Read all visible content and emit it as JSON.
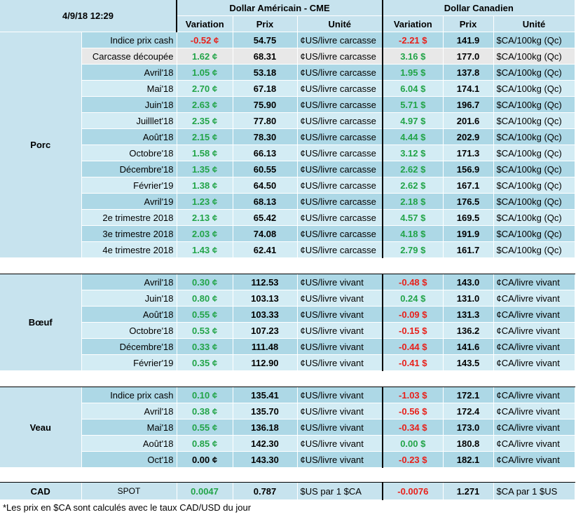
{
  "header": {
    "datetime": "4/9/18 12:29",
    "usd_title": "Dollar Américain - CME",
    "cad_title": "Dollar Canadien",
    "col_variation": "Variation",
    "col_prix": "Prix",
    "col_unite": "Unité"
  },
  "porc": {
    "category": "Porc",
    "rows": [
      {
        "label": "Indice prix cash",
        "usd_var": "-0.52 ¢",
        "usd_dir": "dn",
        "usd_prix": "54.75",
        "usd_unit": "¢US/livre carcasse",
        "cad_var": "-2.21 $",
        "cad_dir": "dn",
        "cad_prix": "141.9",
        "cad_unit": "$CA/100kg (Qc)"
      },
      {
        "label": "Carcasse découpée",
        "usd_var": "1.62 ¢",
        "usd_dir": "up",
        "usd_prix": "68.31",
        "usd_unit": "¢US/livre carcasse",
        "cad_var": "3.16 $",
        "cad_dir": "up",
        "cad_prix": "177.0",
        "cad_unit": "$CA/100kg (Qc)"
      },
      {
        "label": "Avril'18",
        "usd_var": "1.05 ¢",
        "usd_dir": "up",
        "usd_prix": "53.18",
        "usd_unit": "¢US/livre carcasse",
        "cad_var": "1.95 $",
        "cad_dir": "up",
        "cad_prix": "137.8",
        "cad_unit": "$CA/100kg (Qc)"
      },
      {
        "label": "Mai'18",
        "usd_var": "2.70 ¢",
        "usd_dir": "up",
        "usd_prix": "67.18",
        "usd_unit": "¢US/livre carcasse",
        "cad_var": "6.04 $",
        "cad_dir": "up",
        "cad_prix": "174.1",
        "cad_unit": "$CA/100kg (Qc)"
      },
      {
        "label": "Juin'18",
        "usd_var": "2.63 ¢",
        "usd_dir": "up",
        "usd_prix": "75.90",
        "usd_unit": "¢US/livre carcasse",
        "cad_var": "5.71 $",
        "cad_dir": "up",
        "cad_prix": "196.7",
        "cad_unit": "$CA/100kg (Qc)"
      },
      {
        "label": "Juilllet'18",
        "usd_var": "2.35 ¢",
        "usd_dir": "up",
        "usd_prix": "77.80",
        "usd_unit": "¢US/livre carcasse",
        "cad_var": "4.97 $",
        "cad_dir": "up",
        "cad_prix": "201.6",
        "cad_unit": "$CA/100kg (Qc)"
      },
      {
        "label": "Août'18",
        "usd_var": "2.15 ¢",
        "usd_dir": "up",
        "usd_prix": "78.30",
        "usd_unit": "¢US/livre carcasse",
        "cad_var": "4.44 $",
        "cad_dir": "up",
        "cad_prix": "202.9",
        "cad_unit": "$CA/100kg (Qc)"
      },
      {
        "label": "Octobre'18",
        "usd_var": "1.58 ¢",
        "usd_dir": "up",
        "usd_prix": "66.13",
        "usd_unit": "¢US/livre carcasse",
        "cad_var": "3.12 $",
        "cad_dir": "up",
        "cad_prix": "171.3",
        "cad_unit": "$CA/100kg (Qc)"
      },
      {
        "label": "Décembre'18",
        "usd_var": "1.35 ¢",
        "usd_dir": "up",
        "usd_prix": "60.55",
        "usd_unit": "¢US/livre carcasse",
        "cad_var": "2.62 $",
        "cad_dir": "up",
        "cad_prix": "156.9",
        "cad_unit": "$CA/100kg (Qc)"
      },
      {
        "label": "Février'19",
        "usd_var": "1.38 ¢",
        "usd_dir": "up",
        "usd_prix": "64.50",
        "usd_unit": "¢US/livre carcasse",
        "cad_var": "2.62 $",
        "cad_dir": "up",
        "cad_prix": "167.1",
        "cad_unit": "$CA/100kg (Qc)"
      },
      {
        "label": "Avril'19",
        "usd_var": "1.23 ¢",
        "usd_dir": "up",
        "usd_prix": "68.13",
        "usd_unit": "¢US/livre carcasse",
        "cad_var": "2.18 $",
        "cad_dir": "up",
        "cad_prix": "176.5",
        "cad_unit": "$CA/100kg (Qc)"
      },
      {
        "label": "2e trimestre 2018",
        "usd_var": "2.13 ¢",
        "usd_dir": "up",
        "usd_prix": "65.42",
        "usd_unit": "¢US/livre carcasse",
        "cad_var": "4.57 $",
        "cad_dir": "up",
        "cad_prix": "169.5",
        "cad_unit": "$CA/100kg (Qc)"
      },
      {
        "label": "3e trimestre 2018",
        "usd_var": "2.03 ¢",
        "usd_dir": "up",
        "usd_prix": "74.08",
        "usd_unit": "¢US/livre carcasse",
        "cad_var": "4.18 $",
        "cad_dir": "up",
        "cad_prix": "191.9",
        "cad_unit": "$CA/100kg (Qc)"
      },
      {
        "label": "4e trimestre 2018",
        "usd_var": "1.43 ¢",
        "usd_dir": "up",
        "usd_prix": "62.41",
        "usd_unit": "¢US/livre carcasse",
        "cad_var": "2.79 $",
        "cad_dir": "up",
        "cad_prix": "161.7",
        "cad_unit": "$CA/100kg (Qc)"
      }
    ]
  },
  "boeuf": {
    "category": "Bœuf",
    "rows": [
      {
        "label": "Avril'18",
        "usd_var": "0.30 ¢",
        "usd_dir": "up",
        "usd_prix": "112.53",
        "usd_unit": "¢US/livre vivant",
        "cad_var": "-0.48 $",
        "cad_dir": "dn",
        "cad_prix": "143.0",
        "cad_unit": "¢CA/livre vivant"
      },
      {
        "label": "Juin'18",
        "usd_var": "0.80 ¢",
        "usd_dir": "up",
        "usd_prix": "103.13",
        "usd_unit": "¢US/livre vivant",
        "cad_var": "0.24 $",
        "cad_dir": "up",
        "cad_prix": "131.0",
        "cad_unit": "¢CA/livre vivant"
      },
      {
        "label": "Août'18",
        "usd_var": "0.55 ¢",
        "usd_dir": "up",
        "usd_prix": "103.33",
        "usd_unit": "¢US/livre vivant",
        "cad_var": "-0.09 $",
        "cad_dir": "dn",
        "cad_prix": "131.3",
        "cad_unit": "¢CA/livre vivant"
      },
      {
        "label": "Octobre'18",
        "usd_var": "0.53 ¢",
        "usd_dir": "up",
        "usd_prix": "107.23",
        "usd_unit": "¢US/livre vivant",
        "cad_var": "-0.15 $",
        "cad_dir": "dn",
        "cad_prix": "136.2",
        "cad_unit": "¢CA/livre vivant"
      },
      {
        "label": "Décembre'18",
        "usd_var": "0.33 ¢",
        "usd_dir": "up",
        "usd_prix": "111.48",
        "usd_unit": "¢US/livre vivant",
        "cad_var": "-0.44 $",
        "cad_dir": "dn",
        "cad_prix": "141.6",
        "cad_unit": "¢CA/livre vivant"
      },
      {
        "label": "Février'19",
        "usd_var": "0.35 ¢",
        "usd_dir": "up",
        "usd_prix": "112.90",
        "usd_unit": "¢US/livre vivant",
        "cad_var": "-0.41 $",
        "cad_dir": "dn",
        "cad_prix": "143.5",
        "cad_unit": "¢CA/livre vivant"
      }
    ]
  },
  "veau": {
    "category": "Veau",
    "rows": [
      {
        "label": "Indice prix cash",
        "usd_var": "0.10 ¢",
        "usd_dir": "up",
        "usd_prix": "135.41",
        "usd_unit": "¢US/livre vivant",
        "cad_var": "-1.03 $",
        "cad_dir": "dn",
        "cad_prix": "172.1",
        "cad_unit": "¢CA/livre vivant"
      },
      {
        "label": "Avril'18",
        "usd_var": "0.38 ¢",
        "usd_dir": "up",
        "usd_prix": "135.70",
        "usd_unit": "¢US/livre vivant",
        "cad_var": "-0.56 $",
        "cad_dir": "dn",
        "cad_prix": "172.4",
        "cad_unit": "¢CA/livre vivant"
      },
      {
        "label": "Mai'18",
        "usd_var": "0.55 ¢",
        "usd_dir": "up",
        "usd_prix": "136.18",
        "usd_unit": "¢US/livre vivant",
        "cad_var": "-0.34 $",
        "cad_dir": "dn",
        "cad_prix": "173.0",
        "cad_unit": "¢CA/livre vivant"
      },
      {
        "label": "Août'18",
        "usd_var": "0.85 ¢",
        "usd_dir": "up",
        "usd_prix": "142.30",
        "usd_unit": "¢US/livre vivant",
        "cad_var": "0.00 $",
        "cad_dir": "up",
        "cad_prix": "180.8",
        "cad_unit": "¢CA/livre vivant"
      },
      {
        "label": "Oct'18",
        "usd_var": "0.00 ¢",
        "usd_dir": "flat",
        "usd_prix": "143.30",
        "usd_unit": "¢US/livre vivant",
        "cad_var": "-0.23 $",
        "cad_dir": "dn",
        "cad_prix": "182.1",
        "cad_unit": "¢CA/livre vivant"
      }
    ]
  },
  "cad": {
    "category": "CAD",
    "label": "SPOT",
    "usd_var": "0.0047",
    "usd_dir": "up",
    "usd_prix": "0.787",
    "usd_unit": "$US par 1 $CA",
    "cad_var": "-0.0076",
    "cad_dir": "dn",
    "cad_prix": "1.271",
    "cad_unit": "$CA par 1 $US"
  },
  "footnote": "*Les  prix en $CA sont calculés avec le taux CAD/USD du jour"
}
